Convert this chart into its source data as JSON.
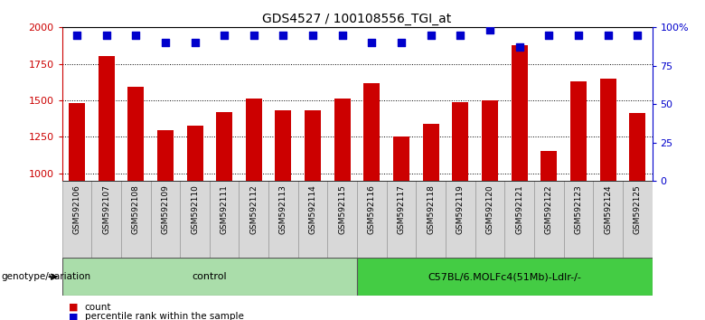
{
  "title": "GDS4527 / 100108556_TGI_at",
  "samples": [
    "GSM592106",
    "GSM592107",
    "GSM592108",
    "GSM592109",
    "GSM592110",
    "GSM592111",
    "GSM592112",
    "GSM592113",
    "GSM592114",
    "GSM592115",
    "GSM592116",
    "GSM592117",
    "GSM592118",
    "GSM592119",
    "GSM592120",
    "GSM592121",
    "GSM592122",
    "GSM592123",
    "GSM592124",
    "GSM592125"
  ],
  "counts": [
    1480,
    1800,
    1590,
    1295,
    1330,
    1420,
    1510,
    1430,
    1435,
    1510,
    1620,
    1250,
    1340,
    1490,
    1500,
    1880,
    1155,
    1630,
    1650,
    1415
  ],
  "percentiles": [
    95,
    95,
    95,
    90,
    90,
    95,
    95,
    95,
    95,
    95,
    90,
    90,
    95,
    95,
    98,
    87,
    95,
    95,
    95,
    95
  ],
  "groups": [
    {
      "label": "control",
      "start": 0,
      "end": 10,
      "color": "#aaddaa"
    },
    {
      "label": "C57BL/6.MOLFc4(51Mb)-Ldlr-/-",
      "start": 10,
      "end": 20,
      "color": "#44cc44"
    }
  ],
  "ylim_left": [
    950,
    2000
  ],
  "ylim_right": [
    0,
    100
  ],
  "yticks_left": [
    1000,
    1250,
    1500,
    1750,
    2000
  ],
  "yticks_right": [
    0,
    25,
    50,
    75,
    100
  ],
  "bar_color": "#CC0000",
  "dot_color": "#0000CC",
  "bg_color": "#D8D8D8",
  "legend_count_color": "#CC0000",
  "legend_pct_color": "#0000CC",
  "bar_width": 0.55,
  "dot_size": 40,
  "genotype_label": "genotype/variation",
  "legend_count_label": "count",
  "legend_pct_label": "percentile rank within the sample",
  "fig_width": 7.8,
  "fig_height": 3.54,
  "dpi": 100
}
